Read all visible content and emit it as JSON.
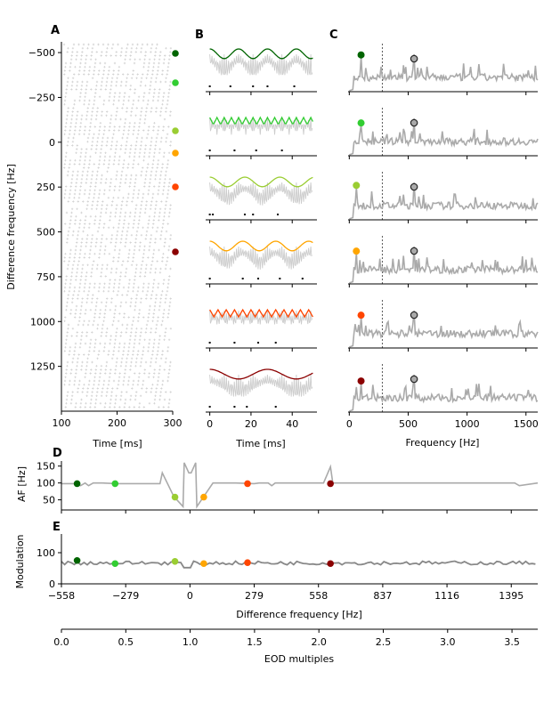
{
  "colors": {
    "c1": "#006400",
    "c2": "#32cd32",
    "c3": "#9acd32",
    "c4": "#ffa500",
    "c5": "#ff4500",
    "c6": "#8b0000",
    "gray": "#aaaaaa",
    "darkgray": "#888888",
    "raster": "#cfcfcf"
  },
  "chart_data": [
    {
      "panel": "A",
      "type": "scatter",
      "title": "",
      "xlabel": "Time [ms]",
      "ylabel": "Difference frequency [Hz]",
      "xlim": [
        100,
        300
      ],
      "ylim": [
        1500,
        -560
      ],
      "xticks": [
        "100",
        "200",
        "300"
      ],
      "yticks": [
        "−500",
        "−250",
        "0",
        "250",
        "500",
        "750",
        "1000",
        "1250"
      ],
      "ytick_values": [
        -500,
        -250,
        0,
        250,
        500,
        750,
        1000,
        1250
      ],
      "description": "Spike raster (gray '+' markers) across difference frequencies",
      "markers": [
        {
          "df": -490,
          "color": "c1"
        },
        {
          "df": -325,
          "color": "c2"
        },
        {
          "df": 60,
          "color": "c3"
        },
        {
          "df": 65,
          "color": "c4"
        },
        {
          "df": 250,
          "color": "c5"
        },
        {
          "df": 610,
          "color": "c6"
        }
      ]
    },
    {
      "panel": "B",
      "type": "line",
      "xlabel": "Time [ms]",
      "xlim": [
        -2,
        52
      ],
      "xticks": [
        "0",
        "20",
        "40"
      ],
      "xtick_values": [
        0,
        20,
        40
      ],
      "rows": [
        {
          "color": "c1",
          "envelope": "sine",
          "period_ms": 14,
          "spikes_ms": [
            0,
            10,
            21,
            28,
            41
          ]
        },
        {
          "color": "c2",
          "envelope": "jagged",
          "period_ms": 3.5,
          "spikes_ms": [
            0,
            12,
            22.5,
            35
          ]
        },
        {
          "color": "c3",
          "envelope": "sine",
          "period_ms": 17,
          "spikes_ms": [
            0,
            1.5,
            17,
            21,
            33
          ]
        },
        {
          "color": "c4",
          "envelope": "sine",
          "period_ms": 16,
          "spikes_ms": [
            0,
            16,
            23.5,
            34,
            45
          ]
        },
        {
          "color": "c5",
          "envelope": "jagged",
          "period_ms": 4,
          "spikes_ms": [
            0,
            12,
            23.5,
            32
          ]
        },
        {
          "color": "c6",
          "envelope": "sine",
          "period_ms": 28,
          "spikes_ms": [
            0,
            12,
            18,
            32
          ]
        }
      ]
    },
    {
      "panel": "C",
      "type": "line",
      "xlabel": "Frequency [Hz]",
      "xlim": [
        -10,
        1600
      ],
      "xticks": [
        "0",
        "500",
        "1000",
        "1500"
      ],
      "xtick_values": [
        0,
        500,
        1000,
        1500
      ],
      "dashed_line_hz": 280,
      "eod_peak_hz": 550,
      "rows": [
        {
          "color": "c1",
          "peak_hz": 100,
          "peak_level": 0.62
        },
        {
          "color": "c2",
          "peak_hz": 100,
          "peak_level": 0.55
        },
        {
          "color": "c3",
          "peak_hz": 60,
          "peak_level": 0.58
        },
        {
          "color": "c4",
          "peak_hz": 60,
          "peak_level": 0.55
        },
        {
          "color": "c5",
          "peak_hz": 100,
          "peak_level": 0.55
        },
        {
          "color": "c6",
          "peak_hz": 100,
          "peak_level": 0.52
        }
      ]
    },
    {
      "panel": "D",
      "type": "line",
      "ylabel": "AF [Hz]",
      "xlim": [
        -558,
        1510
      ],
      "ylim": [
        20,
        165
      ],
      "yticks": [
        "50",
        "100",
        "150"
      ],
      "ytick_values": [
        50,
        100,
        150
      ],
      "x": [
        -558,
        -490,
        -475,
        -455,
        -440,
        -420,
        -400,
        -380,
        -325,
        -200,
        -130,
        -120,
        -70,
        -30,
        -25,
        -5,
        0,
        5,
        25,
        30,
        60,
        100,
        200,
        279,
        300,
        340,
        355,
        370,
        390,
        580,
        610,
        620,
        1395,
        1410,
        1430,
        1510
      ],
      "y": [
        98,
        98,
        92,
        100,
        92,
        100,
        100,
        100,
        98,
        98,
        98,
        130,
        60,
        30,
        160,
        130,
        130,
        130,
        160,
        30,
        60,
        100,
        100,
        98,
        100,
        100,
        92,
        100,
        100,
        100,
        148,
        100,
        100,
        100,
        92,
        100
      ],
      "markers": [
        {
          "df": -490,
          "value": 98,
          "color": "c1"
        },
        {
          "df": -325,
          "value": 98,
          "color": "c2"
        },
        {
          "df": -65,
          "value": 58,
          "color": "c3"
        },
        {
          "df": 60,
          "value": 58,
          "color": "c4"
        },
        {
          "df": 250,
          "value": 98,
          "color": "c5"
        },
        {
          "df": 610,
          "value": 98,
          "color": "c6"
        }
      ]
    },
    {
      "panel": "E",
      "type": "line",
      "ylabel": "Modulation",
      "xlabel": "Difference frequency [Hz]",
      "xlim": [
        -558,
        1510
      ],
      "ylim": [
        0,
        160
      ],
      "yticks": [
        "0",
        "100"
      ],
      "ytick_values": [
        0,
        100
      ],
      "xticks": [
        "−558",
        "−279",
        "0",
        "279",
        "558",
        "837",
        "1116",
        "1395"
      ],
      "xtick_values": [
        -558,
        -279,
        0,
        279,
        558,
        837,
        1116,
        1395
      ],
      "mean_level": 67,
      "markers": [
        {
          "df": -490,
          "value": 75,
          "color": "c1"
        },
        {
          "df": -325,
          "value": 65,
          "color": "c2"
        },
        {
          "df": -65,
          "value": 72,
          "color": "c3"
        },
        {
          "df": 60,
          "value": 65,
          "color": "c4"
        },
        {
          "df": 250,
          "value": 68,
          "color": "c5"
        },
        {
          "df": 610,
          "value": 65,
          "color": "c6"
        }
      ]
    },
    {
      "panel": "secondary-axis",
      "type": "axis",
      "xlabel": "EOD multiples",
      "xlim": [
        0,
        3.7
      ],
      "xticks": [
        "0.0",
        "0.5",
        "1.0",
        "1.5",
        "2.0",
        "2.5",
        "3.0",
        "3.5"
      ],
      "xtick_values": [
        0,
        0.5,
        1.0,
        1.5,
        2.0,
        2.5,
        3.0,
        3.5
      ]
    }
  ]
}
